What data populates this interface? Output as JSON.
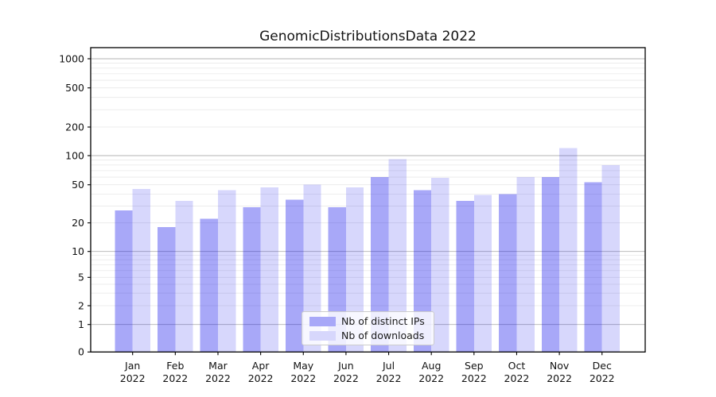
{
  "title": "GenomicDistributionsData 2022",
  "background_color": "#ffffff",
  "legend": {
    "position": "lower center",
    "items": [
      {
        "label": "Nb of distinct IPs",
        "swatch_color": "#a8a8f8"
      },
      {
        "label": "Nb of downloads",
        "swatch_color": "#d7d7fc"
      }
    ]
  },
  "chart_data": {
    "type": "bar",
    "title": "GenomicDistributionsData 2022",
    "categories": [
      "Jan 2022",
      "Feb 2022",
      "Mar 2022",
      "Apr 2022",
      "May 2022",
      "Jun 2022",
      "Jul 2022",
      "Aug 2022",
      "Sep 2022",
      "Oct 2022",
      "Nov 2022",
      "Dec 2022"
    ],
    "x_tick_months": [
      "Jan",
      "Feb",
      "Mar",
      "Apr",
      "May",
      "Jun",
      "Jul",
      "Aug",
      "Sep",
      "Oct",
      "Nov",
      "Dec"
    ],
    "x_tick_year": "2022",
    "series": [
      {
        "name": "Nb of distinct IPs",
        "color": "#0000eb",
        "opacity": 0.34,
        "values": [
          27,
          18,
          22,
          29,
          35,
          29,
          60,
          44,
          34,
          40,
          60,
          53
        ]
      },
      {
        "name": "Nb of downloads",
        "color": "#0000eb",
        "opacity": 0.155,
        "values": [
          45,
          34,
          44,
          47,
          50,
          47,
          92,
          59,
          39,
          60,
          120,
          80
        ]
      }
    ],
    "xlabel": "",
    "ylabel": "",
    "yscale": "symlog",
    "y_ticks": [
      0,
      1,
      2,
      5,
      10,
      20,
      50,
      100,
      200,
      500,
      1000
    ],
    "ylim": [
      0,
      1300
    ],
    "grid": "both",
    "grid_major_color": "#b3b3b3",
    "grid_minor_color": "#e9e9e9",
    "legend_position": "lower center"
  }
}
